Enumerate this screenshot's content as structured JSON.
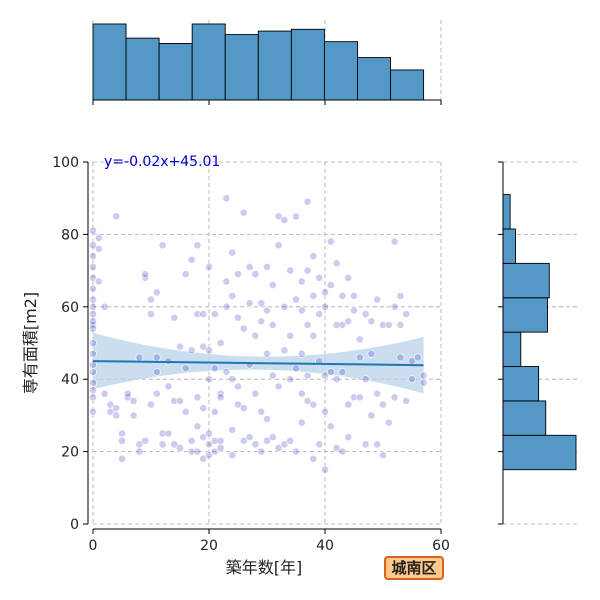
{
  "chart_data": {
    "type": "scatter",
    "xlabel": "築年数[年]",
    "ylabel": "専有面積[m2]",
    "xlim": [
      0,
      60
    ],
    "ylim": [
      0,
      100
    ],
    "x_ticks": [
      0,
      20,
      40,
      60
    ],
    "y_ticks": [
      0,
      20,
      40,
      60,
      80,
      100
    ],
    "grid": true,
    "regression": {
      "label": "y=-0.02x+45.01",
      "slope": -0.02,
      "intercept": 45.01,
      "x_range": [
        0,
        57
      ]
    },
    "top_histogram": {
      "bin_edges": [
        0,
        5.7,
        11.4,
        17.1,
        22.8,
        28.5,
        34.2,
        39.9,
        45.6,
        51.3,
        57
      ],
      "counts": [
        43,
        35,
        32,
        43,
        37,
        39,
        40,
        33,
        24,
        17
      ]
    },
    "right_histogram": {
      "bin_edges": [
        15,
        24.5,
        34,
        43.5,
        53,
        62.5,
        72,
        81.5,
        91
      ],
      "counts": [
        41,
        24,
        20,
        10,
        25,
        26,
        7,
        4
      ]
    },
    "points": {
      "x": [
        0,
        0,
        0,
        0,
        0,
        0,
        0,
        0,
        0,
        0,
        0,
        0,
        0,
        0,
        0,
        0,
        0,
        0,
        0,
        0,
        1,
        1,
        1,
        2,
        2,
        3,
        3,
        4,
        4,
        4,
        5,
        5,
        5,
        6,
        6,
        7,
        7,
        8,
        8,
        8,
        9,
        9,
        9,
        10,
        10,
        10,
        11,
        11,
        11,
        11,
        12,
        12,
        12,
        13,
        13,
        13,
        14,
        14,
        14,
        15,
        15,
        15,
        16,
        16,
        16,
        17,
        17,
        17,
        17,
        18,
        18,
        18,
        18,
        18,
        19,
        19,
        19,
        19,
        19,
        20,
        20,
        20,
        20,
        20,
        20,
        21,
        21,
        21,
        21,
        21,
        22,
        22,
        22,
        22,
        22,
        23,
        23,
        23,
        23,
        24,
        24,
        24,
        24,
        24,
        25,
        25,
        25,
        25,
        26,
        26,
        26,
        26,
        27,
        27,
        27,
        27,
        28,
        28,
        28,
        28,
        29,
        29,
        29,
        29,
        30,
        30,
        30,
        30,
        30,
        31,
        31,
        31,
        31,
        32,
        32,
        32,
        32,
        33,
        33,
        33,
        33,
        34,
        34,
        34,
        34,
        35,
        35,
        35,
        35,
        36,
        36,
        36,
        36,
        36,
        37,
        37,
        37,
        37,
        37,
        38,
        38,
        38,
        38,
        38,
        39,
        39,
        39,
        39,
        40,
        40,
        40,
        40,
        40,
        41,
        41,
        41,
        41,
        42,
        42,
        42,
        42,
        43,
        43,
        43,
        43,
        44,
        44,
        44,
        44,
        45,
        45,
        45,
        46,
        46,
        46,
        47,
        47,
        47,
        48,
        48,
        48,
        49,
        49,
        49,
        50,
        50,
        50,
        51,
        51,
        52,
        52,
        52,
        53,
        53,
        53,
        54,
        54,
        55,
        55,
        56,
        57,
        57
      ],
      "y": [
        55,
        56,
        60,
        62,
        65,
        68,
        42,
        37,
        35,
        31,
        81,
        77,
        74,
        71,
        58,
        54,
        50,
        47,
        44,
        39,
        79,
        76,
        67,
        60,
        36,
        31,
        33,
        30,
        85,
        32,
        25,
        18,
        23,
        35,
        36,
        34,
        30,
        22,
        46,
        20,
        68,
        23,
        69,
        62,
        58,
        33,
        64,
        46,
        42,
        36,
        77,
        25,
        22,
        45,
        38,
        25,
        57,
        22,
        34,
        49,
        21,
        34,
        69,
        43,
        31,
        73,
        48,
        20,
        23,
        77,
        58,
        35,
        27,
        20,
        58,
        49,
        32,
        24,
        18,
        71,
        48,
        40,
        25,
        22,
        19,
        58,
        43,
        31,
        23,
        20,
        36,
        50,
        35,
        23,
        21,
        90,
        67,
        60,
        42,
        75,
        63,
        40,
        26,
        19,
        69,
        57,
        38,
        33,
        86,
        54,
        32,
        23,
        71,
        61,
        44,
        24,
        69,
        52,
        36,
        22,
        61,
        56,
        31,
        20,
        71,
        59,
        47,
        29,
        23,
        66,
        55,
        41,
        24,
        85,
        77,
        38,
        21,
        60,
        48,
        22,
        84,
        70,
        52,
        40,
        23,
        85,
        62,
        43,
        20,
        67,
        59,
        47,
        36,
        28,
        89,
        70,
        55,
        41,
        34,
        74,
        63,
        52,
        33,
        18,
        68,
        58,
        45,
        22,
        64,
        60,
        41,
        31,
        15,
        78,
        66,
        42,
        27,
        72,
        55,
        40,
        21,
        63,
        55,
        42,
        20,
        68,
        56,
        33,
        24,
        63,
        59,
        35,
        51,
        46,
        35,
        58,
        40,
        22,
        56,
        47,
        30,
        62,
        36,
        22,
        55,
        33,
        19,
        55,
        28,
        78,
        60,
        35,
        63,
        55,
        46,
        58,
        34,
        45,
        40,
        46,
        39,
        41
      ]
    }
  },
  "colors": {
    "hist_fill": "#5498c8",
    "point_fill": "#3333bb",
    "line": "#1f77b4",
    "ci_band": "#b9d3ea"
  },
  "badge": {
    "label": "城南区"
  }
}
